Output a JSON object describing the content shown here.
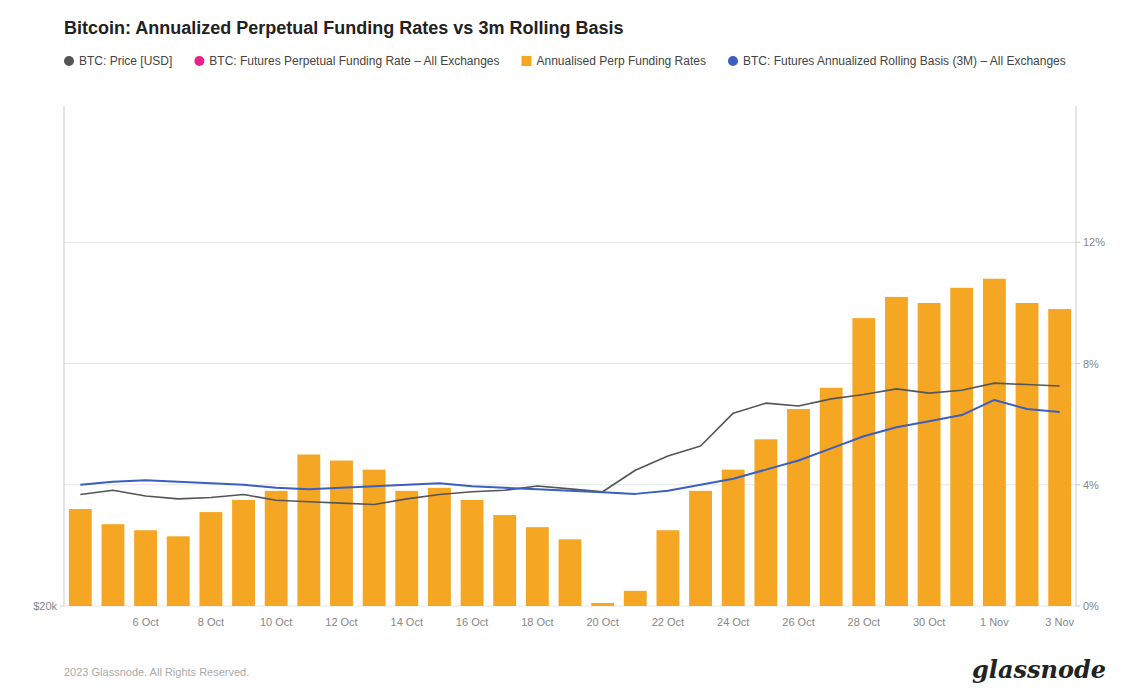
{
  "chart_data": {
    "type": "bar",
    "title": "Bitcoin: Annualized Perpetual Funding Rates vs 3m Rolling Basis",
    "categories": [
      null,
      null,
      "6 Oct",
      null,
      "8 Oct",
      null,
      "10 Oct",
      null,
      "12 Oct",
      null,
      "14 Oct",
      null,
      "16 Oct",
      null,
      "18 Oct",
      null,
      "20 Oct",
      null,
      "22 Oct",
      null,
      "24 Oct",
      null,
      "26 Oct",
      null,
      "28 Oct",
      null,
      "30 Oct",
      null,
      "1 Nov",
      null,
      "3 Nov"
    ],
    "series": [
      {
        "name": "BTC: Price [USD]",
        "type": "line",
        "color": "#555555",
        "values": [
          27800,
          28100,
          27700,
          27500,
          27600,
          27800,
          27400,
          27300,
          27200,
          27100,
          27500,
          27800,
          28000,
          28100,
          28400,
          28200,
          28000,
          29500,
          30500,
          31200,
          33500,
          34200,
          34000,
          34500,
          34800,
          35200,
          34900,
          35100,
          35600,
          35500,
          35400
        ]
      },
      {
        "name": "BTC: Futures Perpetual Funding Rate – All Exchanges",
        "type": "line",
        "color": "#e91e8c",
        "axis": "y2",
        "values": [
          null,
          null,
          null,
          null,
          null,
          null,
          null,
          null,
          null,
          null,
          null,
          null,
          null,
          null,
          null,
          null,
          null,
          null,
          null,
          null,
          null,
          null,
          null,
          null,
          null,
          null,
          null,
          null,
          null,
          null,
          null
        ]
      },
      {
        "name": "Annualised Perp Funding Rates",
        "type": "bar",
        "color": "#f5a623",
        "axis": "y2",
        "values": [
          3.2,
          2.7,
          2.5,
          2.3,
          3.1,
          3.5,
          3.8,
          5.0,
          4.8,
          4.5,
          3.8,
          3.9,
          3.5,
          3.0,
          2.6,
          2.2,
          0.1,
          0.5,
          2.5,
          3.8,
          4.5,
          5.5,
          6.5,
          7.2,
          9.5,
          10.2,
          10.0,
          10.5,
          10.8,
          10.0,
          9.8
        ]
      },
      {
        "name": "BTC: Futures Annualized Rolling Basis (3M) – All Exchanges",
        "type": "line",
        "color": "#3b5fc0",
        "axis": "y2",
        "values": [
          4.0,
          4.1,
          4.15,
          4.1,
          4.05,
          4.0,
          3.9,
          3.85,
          3.9,
          3.95,
          4.0,
          4.05,
          3.95,
          3.9,
          3.85,
          3.8,
          3.75,
          3.7,
          3.8,
          4.0,
          4.2,
          4.5,
          4.8,
          5.2,
          5.6,
          5.9,
          6.1,
          6.3,
          6.8,
          6.5,
          6.4
        ]
      }
    ],
    "ylim": [
      20000,
      55000
    ],
    "yticks": [
      {
        "value": 20000,
        "label": "$20k"
      }
    ],
    "y2lim": [
      0,
      16.5
    ],
    "y2ticks": [
      {
        "value": 0,
        "label": "0%"
      },
      {
        "value": 4,
        "label": "4%"
      },
      {
        "value": 8,
        "label": "8%"
      },
      {
        "value": 12,
        "label": "12%"
      }
    ],
    "grid": true,
    "legend": "top-left",
    "annotations": [
      "2023 Glassnode. All Rights Reserved.",
      "glassnode"
    ]
  }
}
